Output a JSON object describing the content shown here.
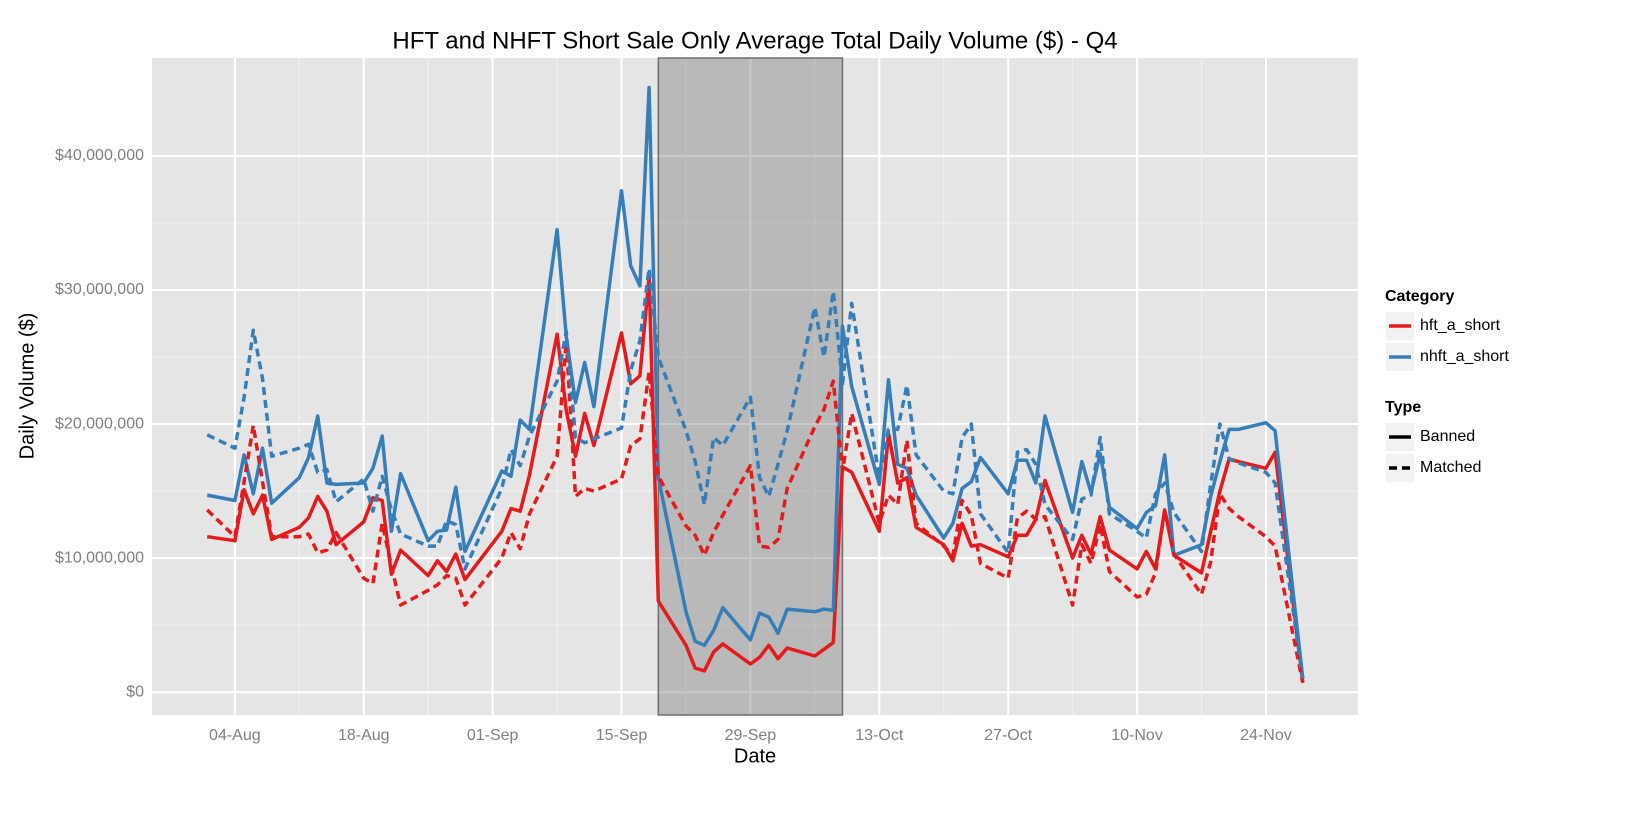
{
  "chart_data": {
    "type": "line",
    "title": "HFT and NHFT Short Sale Only Average Total Daily Volume ($) - Q4",
    "x_label": "Date",
    "y_label": "Daily Volume ($)",
    "x": [
      "01-Aug",
      "04-Aug",
      "05-Aug",
      "06-Aug",
      "07-Aug",
      "08-Aug",
      "11-Aug",
      "12-Aug",
      "13-Aug",
      "14-Aug",
      "15-Aug",
      "18-Aug",
      "19-Aug",
      "20-Aug",
      "21-Aug",
      "22-Aug",
      "25-Aug",
      "26-Aug",
      "27-Aug",
      "28-Aug",
      "29-Aug",
      "02-Sep",
      "03-Sep",
      "04-Sep",
      "05-Sep",
      "08-Sep",
      "09-Sep",
      "10-Sep",
      "11-Sep",
      "12-Sep",
      "15-Sep",
      "16-Sep",
      "17-Sep",
      "18-Sep",
      "19-Sep",
      "22-Sep",
      "23-Sep",
      "24-Sep",
      "25-Sep",
      "26-Sep",
      "29-Sep",
      "30-Sep",
      "01-Oct",
      "02-Oct",
      "03-Oct",
      "06-Oct",
      "07-Oct",
      "08-Oct",
      "09-Oct",
      "10-Oct",
      "13-Oct",
      "14-Oct",
      "15-Oct",
      "16-Oct",
      "17-Oct",
      "20-Oct",
      "21-Oct",
      "22-Oct",
      "23-Oct",
      "24-Oct",
      "27-Oct",
      "28-Oct",
      "29-Oct",
      "30-Oct",
      "31-Oct",
      "03-Nov",
      "04-Nov",
      "05-Nov",
      "06-Nov",
      "07-Nov",
      "10-Nov",
      "11-Nov",
      "12-Nov",
      "13-Nov",
      "14-Nov",
      "17-Nov",
      "18-Nov",
      "19-Nov",
      "20-Nov",
      "21-Nov",
      "24-Nov",
      "25-Nov",
      "28-Nov"
    ],
    "series": [
      {
        "category": "hft_a_short",
        "type": "Banned",
        "color": "#e41a1c",
        "dashed": false,
        "values": [
          11600000,
          11300000,
          15100000,
          13300000,
          14700000,
          11400000,
          12300000,
          13000000,
          14600000,
          13500000,
          11000000,
          12700000,
          14500000,
          14300000,
          8800000,
          10600000,
          8700000,
          9800000,
          9000000,
          10300000,
          8400000,
          12000000,
          13700000,
          13500000,
          16200000,
          26700000,
          21000000,
          17600000,
          20800000,
          18400000,
          26800000,
          23000000,
          23600000,
          31000000,
          6800000,
          3500000,
          1800000,
          1600000,
          3000000,
          3600000,
          2100000,
          2600000,
          3500000,
          2500000,
          3300000,
          2700000,
          3200000,
          3700000,
          16800000,
          16400000,
          12000000,
          19300000,
          15600000,
          16000000,
          12300000,
          11000000,
          9800000,
          12600000,
          10900000,
          11000000,
          10100000,
          11700000,
          11700000,
          12900000,
          15800000,
          10000000,
          11700000,
          10300000,
          13100000,
          10600000,
          9200000,
          10500000,
          9200000,
          13600000,
          10200000,
          8900000,
          12000000,
          15000000,
          17400000,
          17200000,
          16700000,
          17900000,
          700000
        ]
      },
      {
        "category": "nhft_a_short",
        "type": "Banned",
        "color": "#377eb8",
        "dashed": false,
        "values": [
          14700000,
          14300000,
          17700000,
          14800000,
          18200000,
          14100000,
          16000000,
          17500000,
          20600000,
          15600000,
          15500000,
          15600000,
          16700000,
          19100000,
          12000000,
          16300000,
          11300000,
          12000000,
          12100000,
          15300000,
          10500000,
          16500000,
          16100000,
          20300000,
          19600000,
          34500000,
          26500000,
          21600000,
          24600000,
          21300000,
          37400000,
          31800000,
          30300000,
          45100000,
          16000000,
          6000000,
          3800000,
          3500000,
          4600000,
          6300000,
          3900000,
          5900000,
          5600000,
          4400000,
          6200000,
          6000000,
          6200000,
          6100000,
          27300000,
          22800000,
          15500000,
          23300000,
          17000000,
          16700000,
          14700000,
          11500000,
          12600000,
          15200000,
          15700000,
          17500000,
          14800000,
          17300000,
          17300000,
          15600000,
          20600000,
          13400000,
          17200000,
          14900000,
          17800000,
          13800000,
          12200000,
          13400000,
          13900000,
          17700000,
          10200000,
          11000000,
          14600000,
          17200000,
          19600000,
          19600000,
          20100000,
          19500000,
          1000000
        ]
      },
      {
        "category": "hft_a_short",
        "type": "Matched",
        "color": "#e41a1c",
        "dashed": true,
        "values": [
          13600000,
          11600000,
          15700000,
          19900000,
          15700000,
          11600000,
          11600000,
          11800000,
          10400000,
          10600000,
          11900000,
          8500000,
          8100000,
          12600000,
          9400000,
          6500000,
          7600000,
          8000000,
          8700000,
          8500000,
          6500000,
          10000000,
          11900000,
          10700000,
          13300000,
          17600000,
          26200000,
          14600000,
          15200000,
          15000000,
          15900000,
          18400000,
          18900000,
          23900000,
          16100000,
          12400000,
          11700000,
          10200000,
          11900000,
          13200000,
          16900000,
          10900000,
          10800000,
          11400000,
          15200000,
          19800000,
          21100000,
          23200000,
          16500000,
          20800000,
          12600000,
          14700000,
          14000000,
          18800000,
          12600000,
          10900000,
          10200000,
          14300000,
          13200000,
          9600000,
          8500000,
          13000000,
          13500000,
          12900000,
          13100000,
          6500000,
          11000000,
          9600000,
          12500000,
          9000000,
          7100000,
          7300000,
          8900000,
          13600000,
          10300000,
          7300000,
          9700000,
          14800000,
          13700000,
          13100000,
          11600000,
          10900000,
          700000
        ]
      },
      {
        "category": "nhft_a_short",
        "type": "Matched",
        "color": "#377eb8",
        "dashed": true,
        "values": [
          19200000,
          18200000,
          22000000,
          27000000,
          23400000,
          17600000,
          18200000,
          18500000,
          16400000,
          16600000,
          14200000,
          15900000,
          13500000,
          16100000,
          13600000,
          11800000,
          10900000,
          10900000,
          12800000,
          12500000,
          9200000,
          15200000,
          18100000,
          16900000,
          19100000,
          23200000,
          26900000,
          19000000,
          18600000,
          18900000,
          19700000,
          24000000,
          26200000,
          31600000,
          25000000,
          19500000,
          17200000,
          14000000,
          19000000,
          18400000,
          22000000,
          16000000,
          14600000,
          17000000,
          19500000,
          28700000,
          25000000,
          29900000,
          23000000,
          29000000,
          16000000,
          19600000,
          19600000,
          22900000,
          17700000,
          15000000,
          14800000,
          19000000,
          20000000,
          13300000,
          10400000,
          17900000,
          18100000,
          17000000,
          14000000,
          11400000,
          14400000,
          14700000,
          19000000,
          13300000,
          12000000,
          11500000,
          14800000,
          15600000,
          13400000,
          10500000,
          15500000,
          20000000,
          17400000,
          17100000,
          16400000,
          15600000,
          1000000
        ]
      }
    ],
    "legend_titles": {
      "category": "Category",
      "type": "Type"
    },
    "shade": {
      "from": "19-Sep",
      "to": "09-Oct"
    },
    "xlim": [
      "26-Jul",
      "04-Dec"
    ],
    "xticks": [
      "04-Aug",
      "18-Aug",
      "01-Sep",
      "15-Sep",
      "29-Sep",
      "13-Oct",
      "27-Oct",
      "10-Nov",
      "24-Nov"
    ],
    "ylim": [
      -1700000,
      47300000
    ],
    "yticks": [
      {
        "value": 0,
        "label": "$0"
      },
      {
        "value": 10000000,
        "label": "$10,000,000"
      },
      {
        "value": 20000000,
        "label": "$20,000,000"
      },
      {
        "value": 30000000,
        "label": "$30,000,000"
      },
      {
        "value": 40000000,
        "label": "$40,000,000"
      }
    ],
    "grid": true
  }
}
